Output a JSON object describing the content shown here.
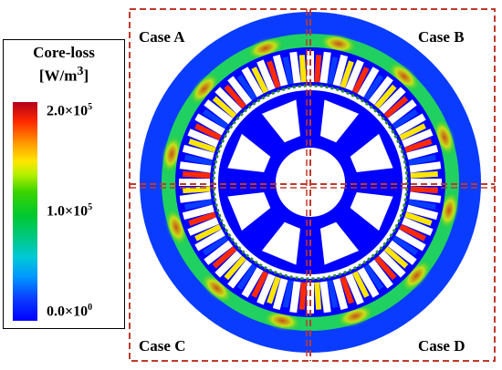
{
  "legend": {
    "title_line1": "Core-loss",
    "title_unit_base": "[W/m",
    "title_unit_exp": "3",
    "title_unit_close": "]",
    "ticks": [
      {
        "mantissa": "2.0×10",
        "exp": "5"
      },
      {
        "mantissa": "1.0×10",
        "exp": "5"
      },
      {
        "mantissa": "0.0×10",
        "exp": "0"
      }
    ]
  },
  "cases": [
    {
      "label": "Case A",
      "quadrant": "top-left"
    },
    {
      "label": "Case B",
      "quadrant": "top-right"
    },
    {
      "label": "Case C",
      "quadrant": "bottom-left"
    },
    {
      "label": "Case D",
      "quadrant": "bottom-right"
    }
  ],
  "colors": {
    "low": "#0000ff",
    "mid": "#00c830",
    "high": "#b4001c",
    "divider": "#c0392b"
  },
  "geometry_counts": {
    "stator_slots": 48,
    "rotor_arms": 8
  }
}
